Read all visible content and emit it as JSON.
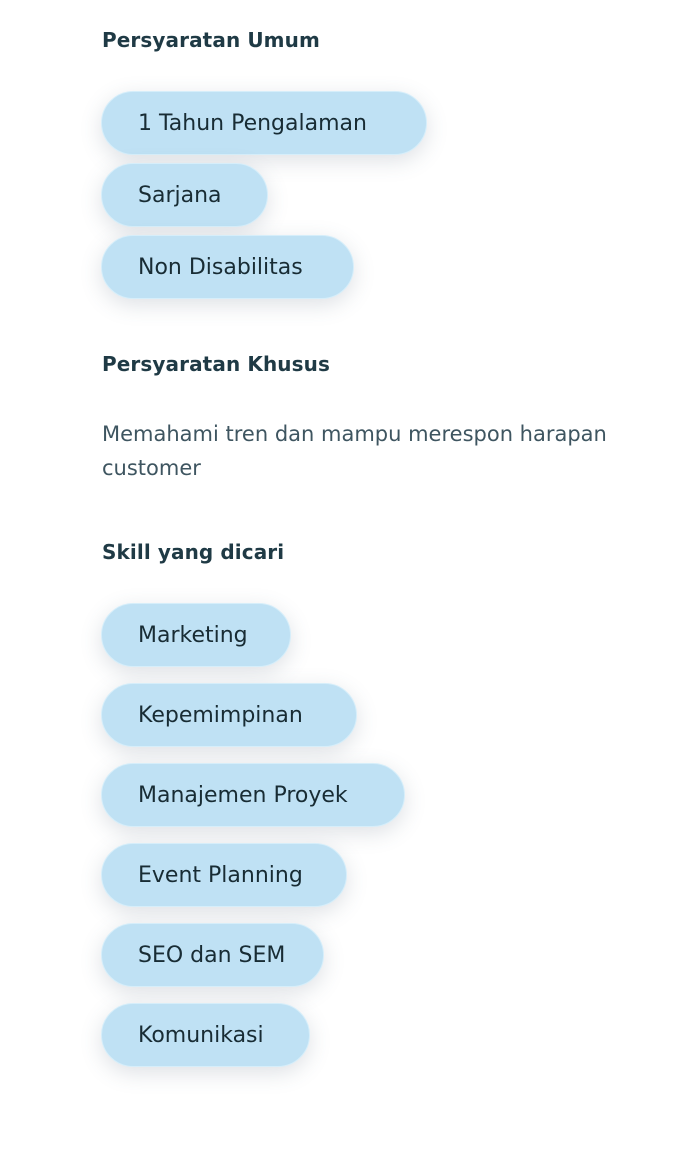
{
  "general_requirements": {
    "title": "Persyaratan Umum",
    "chips": [
      "1 Tahun Pengalaman",
      "Sarjana",
      "Non Disabilitas"
    ]
  },
  "special_requirements": {
    "title": "Persyaratan Khusus",
    "description": "Memahami tren dan mampu merespon harapan customer"
  },
  "skills": {
    "title": "Skill yang dicari",
    "chips": [
      "Marketing",
      "Kepemimpinan",
      "Manajemen Proyek",
      "Event Planning",
      "SEO dan SEM",
      "Komunikasi"
    ]
  },
  "colors": {
    "chip_bg": "#bfe1f4",
    "heading": "#1f3a45",
    "body_text": "#3e5560"
  }
}
